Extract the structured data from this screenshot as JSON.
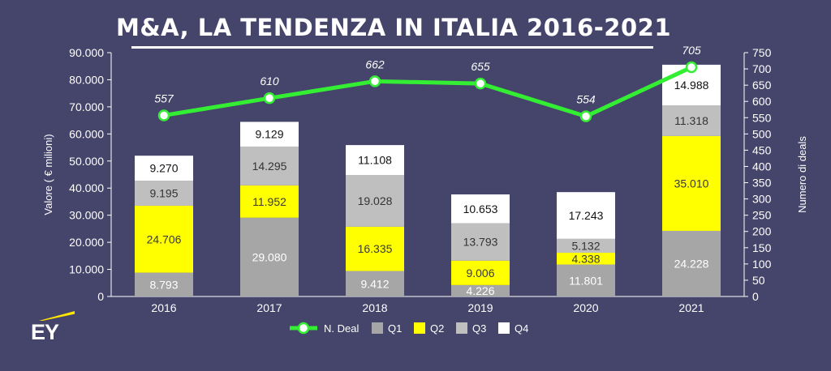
{
  "header": {
    "title": "M&A, LA TENDENZA IN ITALIA 2016-2021"
  },
  "brand": {
    "logo_text": "EY",
    "accent_color": "#ffe600"
  },
  "colors": {
    "background": "#45446a",
    "q1": "#a6a6a6",
    "q2": "#ffff00",
    "q3": "#bfbfbf",
    "q4": "#ffffff",
    "line": "#33ee33"
  },
  "chart_data": {
    "type": "bar",
    "stacked": true,
    "categories": [
      "2016",
      "2017",
      "2018",
      "2019",
      "2020",
      "2021"
    ],
    "series": [
      {
        "name": "Q1",
        "values": [
          8793,
          29080,
          9412,
          4226,
          11801,
          24228
        ],
        "labels": [
          "8.793",
          "29.080",
          "9.412",
          "4.226",
          "11.801",
          "24.228"
        ]
      },
      {
        "name": "Q2",
        "values": [
          24706,
          11952,
          16335,
          9006,
          4338,
          35010
        ],
        "labels": [
          "24.706",
          "11.952",
          "16.335",
          "9.006",
          "4.338",
          "35.010"
        ]
      },
      {
        "name": "Q3",
        "values": [
          9195,
          14295,
          19028,
          13793,
          5132,
          11318
        ],
        "labels": [
          "9.195",
          "14.295",
          "19.028",
          "13.793",
          "5.132",
          "11.318"
        ]
      },
      {
        "name": "Q4",
        "values": [
          9270,
          9129,
          11108,
          10653,
          17243,
          14988
        ],
        "labels": [
          "9.270",
          "9.129",
          "11.108",
          "10.653",
          "17.243",
          "14.988"
        ]
      }
    ],
    "line_series": {
      "name": "N. Deal",
      "values": [
        557,
        610,
        662,
        655,
        554,
        705
      ],
      "labels": [
        "557",
        "610",
        "662",
        "655",
        "554",
        "705"
      ],
      "axis": "right"
    },
    "ylabel": "Valore  ( € milioni)",
    "ylabel_right": "Numero di deals",
    "ylim": [
      0,
      90000
    ],
    "ylim_right": [
      0,
      750
    ],
    "yticks": [
      "0",
      "10.000",
      "20.000",
      "30.000",
      "40.000",
      "50.000",
      "60.000",
      "70.000",
      "80.000",
      "90.000"
    ],
    "yticks_right": [
      "0",
      "50",
      "100",
      "150",
      "200",
      "250",
      "300",
      "350",
      "400",
      "450",
      "500",
      "550",
      "600",
      "650",
      "700",
      "750"
    ],
    "legend": [
      "N. Deal",
      "Q1",
      "Q2",
      "Q3",
      "Q4"
    ],
    "legend_position": "bottom",
    "grid": false
  }
}
